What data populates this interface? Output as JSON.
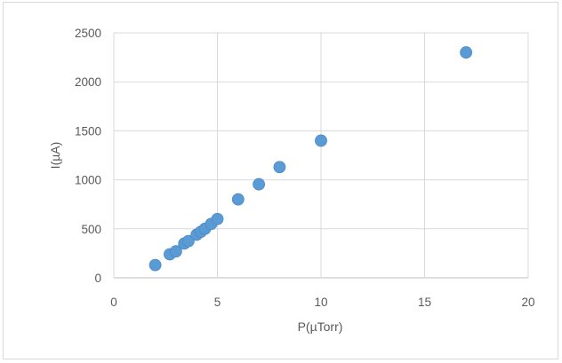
{
  "chart_data": {
    "type": "scatter",
    "title": "",
    "xlabel": "P(µTorr)",
    "ylabel": "I(µA)",
    "xlim": [
      0,
      20
    ],
    "ylim": [
      0,
      2500
    ],
    "xticks": [
      0,
      5,
      10,
      15,
      20
    ],
    "yticks": [
      0,
      500,
      1000,
      1500,
      2000,
      2500
    ],
    "grid": true,
    "legend": "none",
    "marker_color": "#5b9bd5",
    "series": [
      {
        "points": [
          {
            "x": 2.0,
            "y": 130
          },
          {
            "x": 2.7,
            "y": 240
          },
          {
            "x": 3.0,
            "y": 270
          },
          {
            "x": 3.4,
            "y": 350
          },
          {
            "x": 3.6,
            "y": 375
          },
          {
            "x": 4.0,
            "y": 440
          },
          {
            "x": 4.2,
            "y": 470
          },
          {
            "x": 4.4,
            "y": 500
          },
          {
            "x": 4.7,
            "y": 550
          },
          {
            "x": 5.0,
            "y": 600
          },
          {
            "x": 6.0,
            "y": 800
          },
          {
            "x": 7.0,
            "y": 955
          },
          {
            "x": 8.0,
            "y": 1130
          },
          {
            "x": 10.0,
            "y": 1400
          },
          {
            "x": 17.0,
            "y": 2300
          }
        ]
      }
    ]
  }
}
